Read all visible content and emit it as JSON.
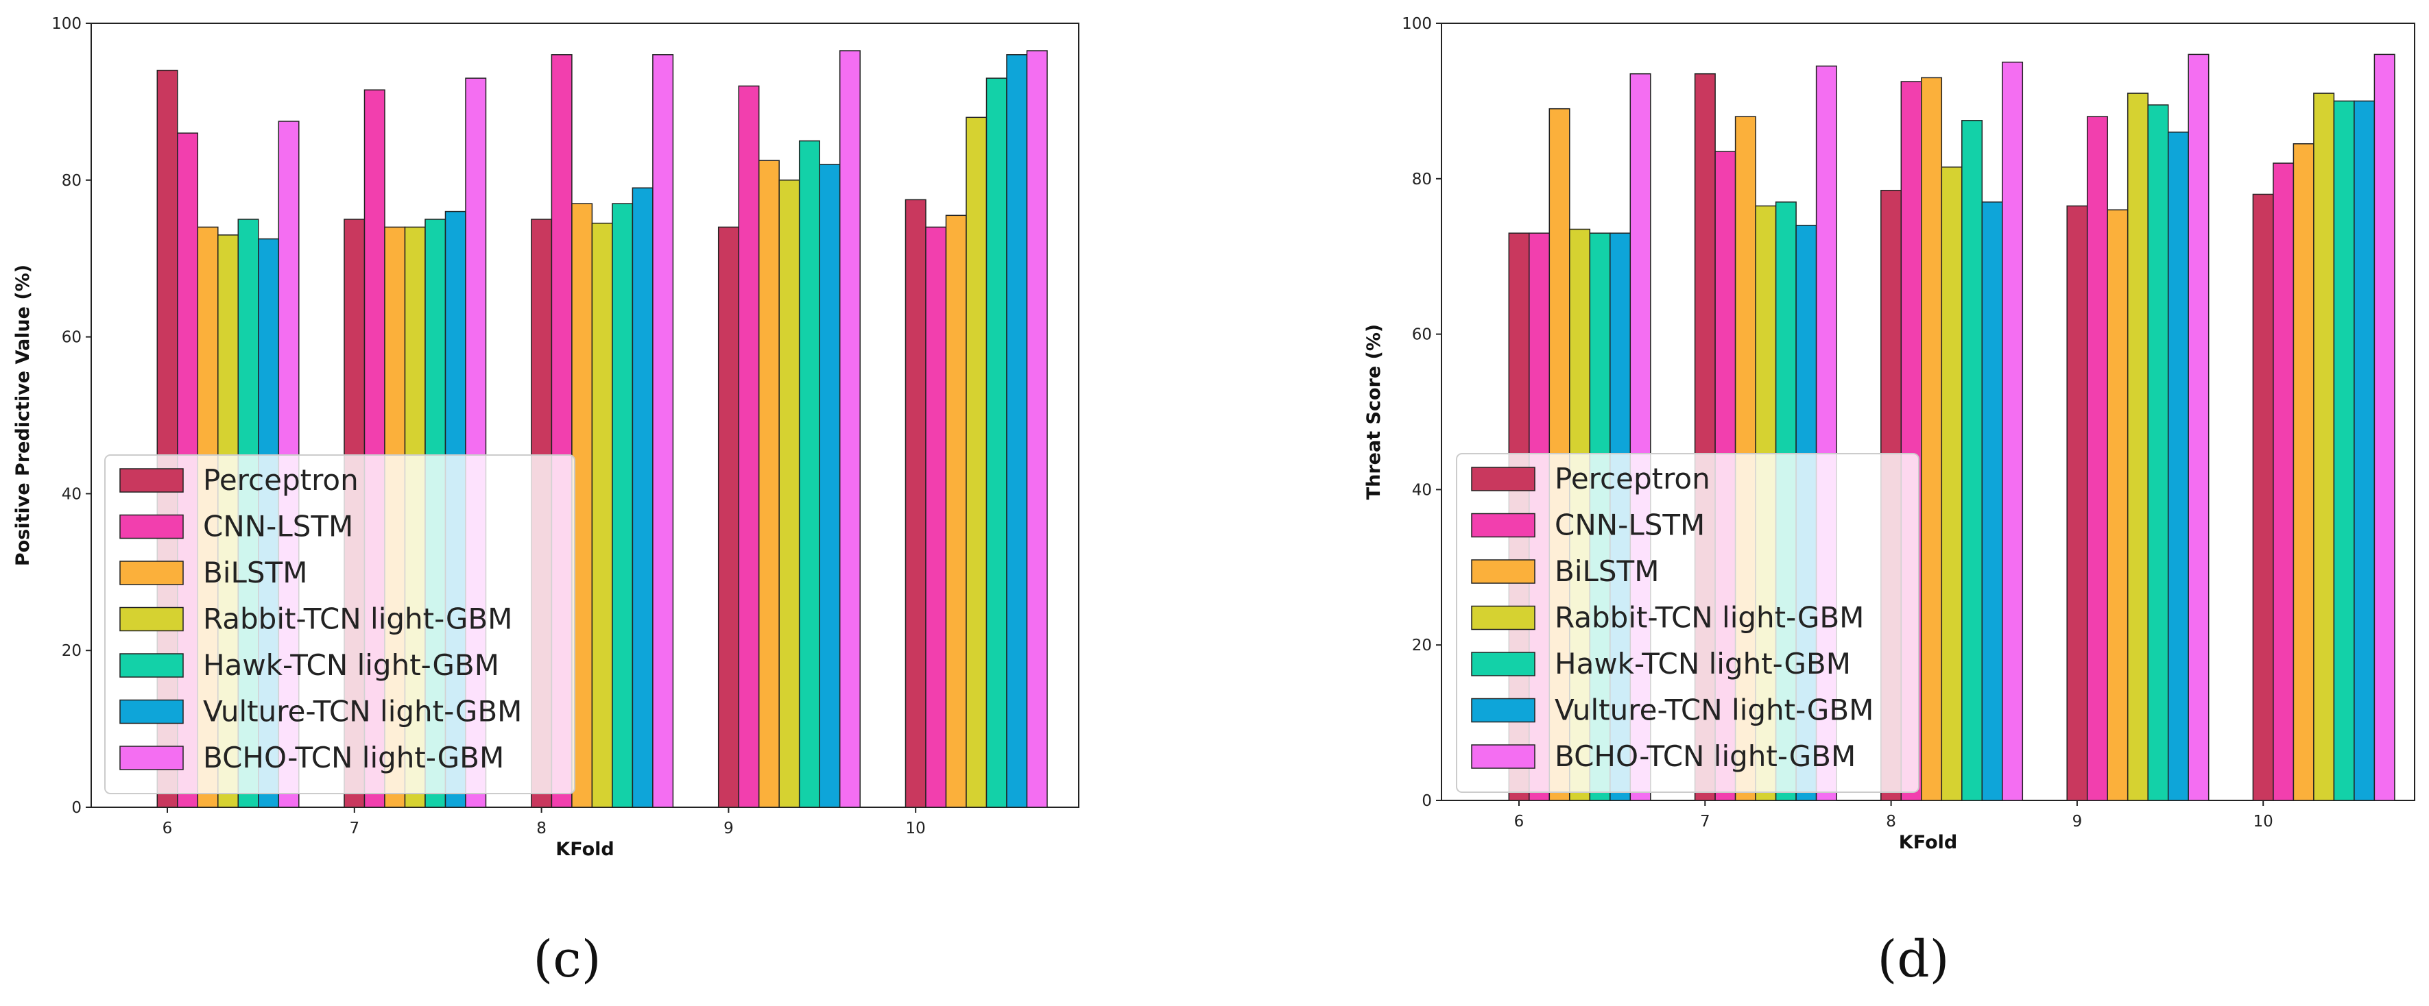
{
  "chart_data": [
    {
      "type": "bar",
      "panel": "(c)",
      "xlabel": "KFold",
      "ylabel": "Positive Predictive Value (%)",
      "categories": [
        "6",
        "7",
        "8",
        "9",
        "10"
      ],
      "ylim": [
        0,
        100
      ],
      "yticks": [
        "0",
        "20",
        "40",
        "60",
        "80",
        "100"
      ],
      "legend_position": "lower-left",
      "series": [
        {
          "name": "Perceptron",
          "color": "#c9385e",
          "values": [
            94,
            75,
            75,
            74,
            77.5
          ]
        },
        {
          "name": "CNN-LSTM",
          "color": "#f23fae",
          "values": [
            86,
            91.5,
            96,
            92,
            74
          ]
        },
        {
          "name": "BiLSTM",
          "color": "#fbb03b",
          "values": [
            74,
            74,
            77,
            82.5,
            75.5
          ]
        },
        {
          "name": "Rabbit-TCN light-GBM",
          "color": "#d6d231",
          "values": [
            73,
            74,
            74.5,
            80,
            88
          ]
        },
        {
          "name": "Hawk-TCN light-GBM",
          "color": "#13d1a8",
          "values": [
            75,
            75,
            77,
            85,
            93
          ]
        },
        {
          "name": "Vulture-TCN light-GBM",
          "color": "#0ea5d9",
          "values": [
            72.5,
            76,
            79,
            82,
            96
          ]
        },
        {
          "name": "BCHO-TCN light-GBM",
          "color": "#f46ef2",
          "values": [
            87.5,
            93,
            96,
            96.5,
            96.5
          ]
        }
      ]
    },
    {
      "type": "bar",
      "panel": "(d)",
      "xlabel": "KFold",
      "ylabel": "Threat Score (%)",
      "categories": [
        "6",
        "7",
        "8",
        "9",
        "10"
      ],
      "ylim": [
        0,
        100
      ],
      "yticks": [
        "0",
        "20",
        "40",
        "60",
        "80",
        "100"
      ],
      "legend_position": "lower-left",
      "series": [
        {
          "name": "Perceptron",
          "color": "#c9385e",
          "values": [
            73,
            93.5,
            78.5,
            76.5,
            78
          ]
        },
        {
          "name": "CNN-LSTM",
          "color": "#f23fae",
          "values": [
            73,
            83.5,
            92.5,
            88,
            82
          ]
        },
        {
          "name": "BiLSTM",
          "color": "#fbb03b",
          "values": [
            89,
            88,
            93,
            76,
            84.5
          ]
        },
        {
          "name": "Rabbit-TCN light-GBM",
          "color": "#d6d231",
          "values": [
            73.5,
            76.5,
            81.5,
            91,
            91
          ]
        },
        {
          "name": "Hawk-TCN light-GBM",
          "color": "#13d1a8",
          "values": [
            73,
            77,
            87.5,
            89.5,
            90
          ]
        },
        {
          "name": "Vulture-TCN light-GBM",
          "color": "#0ea5d9",
          "values": [
            73,
            74,
            77,
            86,
            90
          ]
        },
        {
          "name": "BCHO-TCN light-GBM",
          "color": "#f46ef2",
          "values": [
            93.5,
            94.5,
            95,
            96,
            96
          ]
        }
      ]
    }
  ]
}
